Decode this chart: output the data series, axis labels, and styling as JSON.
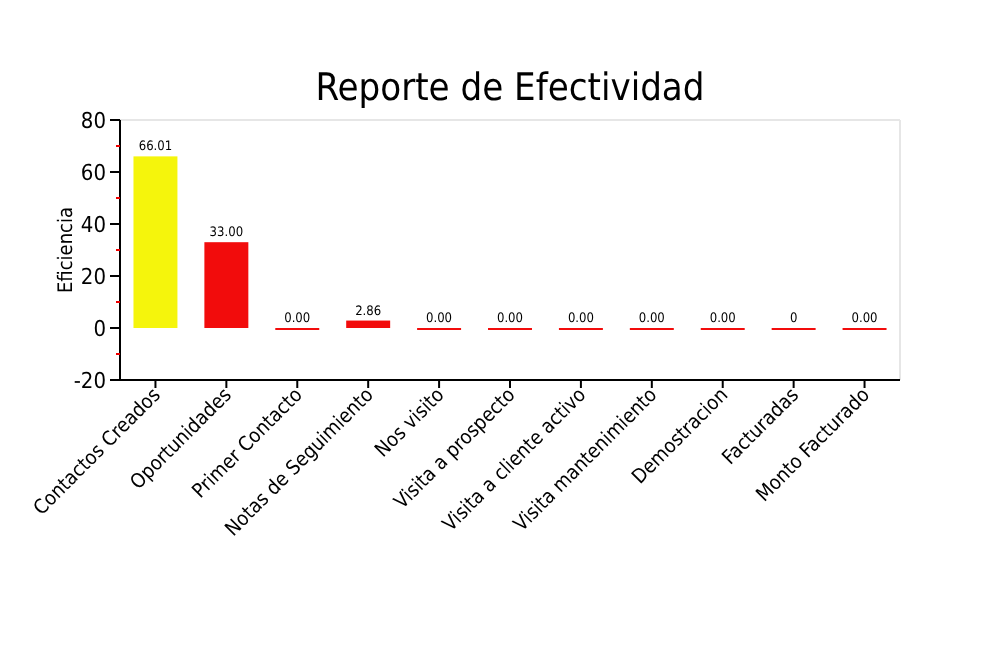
{
  "chart_data": {
    "type": "bar",
    "title": "Reporte de Efectividad",
    "ylabel": "Eficiencia",
    "categories": [
      "Contactos Creados",
      "Oportunidades",
      "Primer Contacto",
      "Notas de Seguimiento",
      "Nos visito",
      "Visita a prospecto",
      "Visita a cliente activo",
      "Visita mantenimiento",
      "Demostracion",
      "Facturadas",
      "Monto Facturado"
    ],
    "values": [
      66.01,
      33,
      0,
      2.86,
      0,
      0,
      0,
      0,
      0,
      0,
      0
    ],
    "value_labels": [
      "66.01",
      "33.00",
      "0.00",
      "2.86",
      "0.00",
      "0.00",
      "0.00",
      "0.00",
      "0.00",
      "0",
      "0.00"
    ],
    "colors": [
      "#f5f50c",
      "#f20c0c",
      "#f20c0c",
      "#f20c0c",
      "#f20c0c",
      "#f20c0c",
      "#f20c0c",
      "#f20c0c",
      "#f20c0c",
      "#f20c0c",
      "#f20c0c"
    ],
    "ylim": [
      -20,
      80
    ],
    "yticks": [
      -20,
      {
        "value": -10,
        "label": null
      },
      0,
      {
        "value": 10,
        "label": null
      },
      20,
      {
        "value": 30,
        "label": null
      },
      40,
      {
        "value": 50,
        "label": null
      },
      60,
      {
        "value": 70,
        "label": null
      },
      80
    ]
  }
}
